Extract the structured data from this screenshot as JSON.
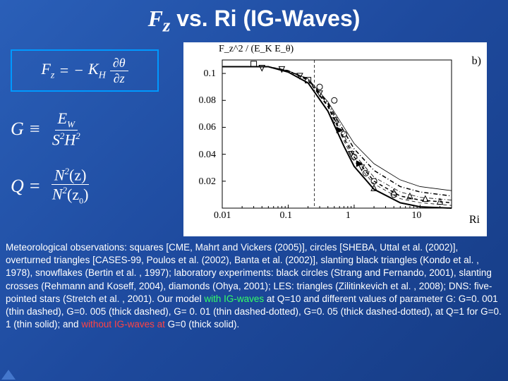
{
  "title": {
    "prefix_symbol": "F",
    "prefix_sub": "z",
    "rest": " vs.  Ri  (IG-Waves)"
  },
  "equation1": {
    "lhs": "F",
    "lhs_sub": "z",
    "eq": "=",
    "neg": "−",
    "coef": "K",
    "coef_sub": "H",
    "frac_num": "∂θ",
    "frac_den": "∂z"
  },
  "equation2": {
    "lhs": "G ≡",
    "frac_num": "E",
    "frac_num_sub": "W",
    "frac_den_l": "S",
    "frac_den_l_sup": "2",
    "frac_den_r": "H",
    "frac_den_r_sup": "2"
  },
  "equation3": {
    "lhs": "Q =",
    "frac_num_l": "N",
    "frac_num_sup": "2",
    "frac_num_arg": "(z)",
    "frac_den_l": "N",
    "frac_den_sup": "2",
    "frac_den_arg_l": "(z",
    "frac_den_arg_sub": "0",
    "frac_den_arg_r": ")"
  },
  "chart": {
    "type": "scatter-with-curves",
    "panel_label": "b)",
    "y_title": "F_z^2 / (E_K E_θ)",
    "x_label": "Ri",
    "xscale": "log",
    "xlim": [
      0.01,
      30
    ],
    "ylim": [
      0,
      0.11
    ],
    "xticks": [
      0.01,
      0.1,
      1,
      10
    ],
    "xtick_labels": [
      "0.01",
      "0.1",
      "1",
      "10"
    ],
    "yticks": [
      0.02,
      0.04,
      0.06,
      0.08,
      0.1
    ],
    "ytick_labels": [
      "0.02",
      "0.04",
      "0.06",
      "0.08",
      "0.1"
    ],
    "background_color": "#ffffff",
    "axis_color": "#000000",
    "dashed_vline_x": 0.25,
    "curves": [
      {
        "name": "G0.001_thin_dashed",
        "style": "dashed",
        "width": 0.8,
        "color": "#000000",
        "points": [
          [
            0.01,
            0.105
          ],
          [
            0.05,
            0.105
          ],
          [
            0.1,
            0.102
          ],
          [
            0.2,
            0.095
          ],
          [
            0.4,
            0.075
          ],
          [
            0.7,
            0.05
          ],
          [
            1,
            0.035
          ],
          [
            2,
            0.018
          ],
          [
            5,
            0.007
          ],
          [
            10,
            0.004
          ],
          [
            30,
            0.002
          ]
        ]
      },
      {
        "name": "G0.005_thick_dashed",
        "style": "dashed",
        "width": 1.5,
        "color": "#000000",
        "points": [
          [
            0.01,
            0.105
          ],
          [
            0.05,
            0.105
          ],
          [
            0.1,
            0.102
          ],
          [
            0.2,
            0.095
          ],
          [
            0.4,
            0.076
          ],
          [
            0.7,
            0.052
          ],
          [
            1,
            0.038
          ],
          [
            2,
            0.02
          ],
          [
            5,
            0.009
          ],
          [
            10,
            0.006
          ],
          [
            30,
            0.004
          ]
        ]
      },
      {
        "name": "G0.01_thin_dashdot",
        "style": "dashdot",
        "width": 0.8,
        "color": "#000000",
        "points": [
          [
            0.01,
            0.105
          ],
          [
            0.05,
            0.105
          ],
          [
            0.1,
            0.102
          ],
          [
            0.2,
            0.095
          ],
          [
            0.4,
            0.077
          ],
          [
            0.7,
            0.054
          ],
          [
            1,
            0.04
          ],
          [
            2,
            0.023
          ],
          [
            5,
            0.012
          ],
          [
            10,
            0.008
          ],
          [
            30,
            0.006
          ]
        ]
      },
      {
        "name": "G0.05_thick_dashdot",
        "style": "dashdot",
        "width": 1.5,
        "color": "#000000",
        "points": [
          [
            0.01,
            0.105
          ],
          [
            0.05,
            0.105
          ],
          [
            0.1,
            0.102
          ],
          [
            0.2,
            0.096
          ],
          [
            0.4,
            0.078
          ],
          [
            0.7,
            0.057
          ],
          [
            1,
            0.044
          ],
          [
            2,
            0.028
          ],
          [
            5,
            0.016
          ],
          [
            10,
            0.012
          ],
          [
            30,
            0.009
          ]
        ]
      },
      {
        "name": "Q1_G0.1_thin_solid",
        "style": "solid",
        "width": 0.8,
        "color": "#000000",
        "points": [
          [
            0.01,
            0.105
          ],
          [
            0.05,
            0.105
          ],
          [
            0.1,
            0.102
          ],
          [
            0.2,
            0.096
          ],
          [
            0.4,
            0.079
          ],
          [
            0.7,
            0.06
          ],
          [
            1,
            0.048
          ],
          [
            2,
            0.033
          ],
          [
            5,
            0.021
          ],
          [
            10,
            0.016
          ],
          [
            30,
            0.013
          ]
        ]
      },
      {
        "name": "noIG_G0_thick_solid",
        "style": "solid",
        "width": 2.0,
        "color": "#000000",
        "points": [
          [
            0.01,
            0.105
          ],
          [
            0.05,
            0.105
          ],
          [
            0.1,
            0.101
          ],
          [
            0.2,
            0.093
          ],
          [
            0.4,
            0.072
          ],
          [
            0.7,
            0.046
          ],
          [
            1,
            0.031
          ],
          [
            2,
            0.014
          ],
          [
            5,
            0.004
          ],
          [
            10,
            0.001
          ],
          [
            30,
            0.0
          ]
        ]
      }
    ],
    "markers": {
      "squares": {
        "symbol": "square",
        "color": "#000000",
        "fill": "none",
        "points": [
          [
            0.03,
            0.107
          ],
          [
            0.2,
            0.095
          ]
        ]
      },
      "circles": {
        "symbol": "circle",
        "color": "#000000",
        "fill": "none",
        "points": [
          [
            0.3,
            0.09
          ],
          [
            0.5,
            0.08
          ],
          [
            0.7,
            0.055
          ],
          [
            1.0,
            0.038
          ],
          [
            1.5,
            0.026
          ],
          [
            2.0,
            0.02
          ],
          [
            4.0,
            0.01
          ]
        ]
      },
      "down_tri": {
        "symbol": "triangle-down",
        "color": "#000000",
        "fill": "none",
        "points": [
          [
            0.04,
            0.104
          ],
          [
            0.08,
            0.103
          ],
          [
            0.15,
            0.098
          ],
          [
            0.3,
            0.085
          ],
          [
            0.5,
            0.065
          ],
          [
            0.9,
            0.04
          ],
          [
            1.3,
            0.03
          ]
        ]
      },
      "up_tri": {
        "symbol": "triangle-up",
        "color": "#000000",
        "fill": "none",
        "points": [
          [
            2.0,
            0.015
          ],
          [
            4.0,
            0.012
          ],
          [
            7.0,
            0.009
          ],
          [
            12.0,
            0.007
          ],
          [
            20.0,
            0.005
          ]
        ]
      },
      "slant_tri": {
        "symbol": "triangle-right",
        "color": "#000000",
        "fill": "#000000",
        "points": [
          [
            0.6,
            0.058
          ],
          [
            1.2,
            0.033
          ]
        ]
      }
    }
  },
  "caption": {
    "t1": "Meteorological observations: squares [CME, Mahrt and Vickers (2005)], circles [SHEBA, Uttal et al. (2002)], overturned triangles [CASES-99, Poulos et al. (2002), Banta et al. (2002)], slanting black triangles (Kondo et al. , 1978), snowflakes (Bertin et al. , 1997); laboratory experiments: black circles (Strang and Fernando, 2001), slanting crosses (Rehmann and Koseff, 2004), diamonds (Ohya, 2001); LES: triangles (Zilitinkevich et al. , 2008); DNS: five-pointed stars (Stretch et al. , 2001). Our model",
    "green1": "  with IG-waves ",
    "t2": "at Q=10 and different values of parameter G:  G=0. 001 (thin dashed), G=0. 005 (thick dashed), G= 0. 01 (thin dashed-dotted), G=0. 05 (thick dashed-dotted), at  Q=1 for G=0. 1 (thin solid); and",
    "red1": " without IG-waves at ",
    "t3": " G=0 (thick solid)."
  }
}
